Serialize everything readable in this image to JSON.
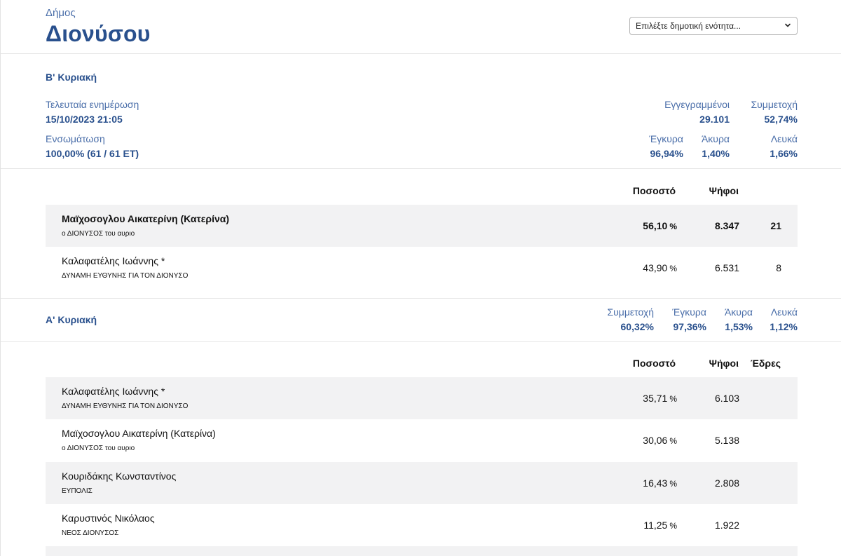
{
  "header": {
    "municipality_label": "Δήμος",
    "municipality_name": "Διονύσου",
    "select_placeholder": "Επιλέξτε δημοτική ενότητα...",
    "select_icon": "chevron-down-icon"
  },
  "round_b": {
    "title": "Β' Κυριακή",
    "last_update_label": "Τελευταία ενημέρωση",
    "last_update_value": "15/10/2023 21:05",
    "integration_label": "Ενσωμάτωση",
    "integration_value": "100,00% (61 / 61 ΕΤ)",
    "registered_label": "Εγγεγραμμένοι",
    "registered_value": "29.101",
    "turnout_label": "Συμμετοχή",
    "turnout_value": "52,74%",
    "valid_label": "Έγκυρα",
    "valid_value": "96,94%",
    "invalid_label": "Άκυρα",
    "invalid_value": "1,40%",
    "blank_label": "Λευκά",
    "blank_value": "1,66%",
    "table": {
      "col_percent": "Ποσοστό",
      "col_votes": "Ψήφοι",
      "rows": [
        {
          "name": "Μαϊχοσογλου Αικατερίνη (Κατερίνα)",
          "party": "ο ΔΙΟΝΥΣΟΣ του αυριο",
          "percent": "56,10",
          "unit": "%",
          "votes": "8.347",
          "seats": "21"
        },
        {
          "name": "Καλαφατέλης Ιωάννης *",
          "party": "ΔΥΝΑΜΗ ΕΥΘΥΝΗΣ ΓΙΑ ΤΟΝ ΔΙΟΝΥΣΟ",
          "percent": "43,90",
          "unit": "%",
          "votes": "6.531",
          "seats": "8"
        }
      ]
    }
  },
  "round_a": {
    "title": "Α' Κυριακή",
    "turnout_label": "Συμμετοχή",
    "turnout_value": "60,32%",
    "valid_label": "Έγκυρα",
    "valid_value": "97,36%",
    "invalid_label": "Άκυρα",
    "invalid_value": "1,53%",
    "blank_label": "Λευκά",
    "blank_value": "1,12%",
    "table": {
      "col_percent": "Ποσοστό",
      "col_votes": "Ψήφοι",
      "col_seats": "Έδρες",
      "rows": [
        {
          "name": "Καλαφατέλης Ιωάννης *",
          "party": "ΔΥΝΑΜΗ ΕΥΘΥΝΗΣ ΓΙΑ ΤΟΝ ΔΙΟΝΥΣΟ",
          "percent": "35,71",
          "unit": "%",
          "votes": "6.103"
        },
        {
          "name": "Μαϊχοσογλου Αικατερίνη (Κατερίνα)",
          "party": "ο ΔΙΟΝΥΣΟΣ του αυριο",
          "percent": "30,06",
          "unit": "%",
          "votes": "5.138"
        },
        {
          "name": "Κουριδάκης Κωνσταντίνος",
          "party": "ΕΥΠΟΛΙΣ",
          "percent": "16,43",
          "unit": "%",
          "votes": "2.808"
        },
        {
          "name": "Καρυστινός Νικόλαος",
          "party": "ΝΕΟΣ ΔΙΟΝΥΣΟΣ",
          "percent": "11,25",
          "unit": "%",
          "votes": "1.922"
        }
      ]
    }
  },
  "colors": {
    "accent_navy": "#29508d",
    "accent_blue": "#4a6ea9",
    "row_shade": "#f2f2f3"
  }
}
